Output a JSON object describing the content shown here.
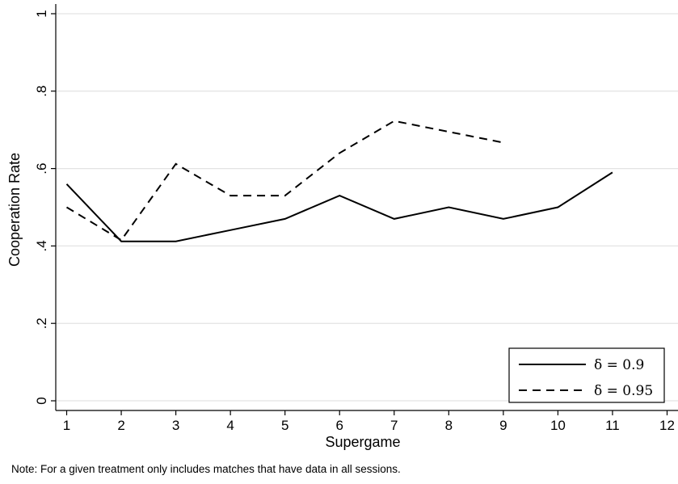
{
  "chart_data": {
    "type": "line",
    "xlabel": "Supergame",
    "ylabel": "Cooperation Rate",
    "x_ticks": [
      1,
      2,
      3,
      4,
      5,
      6,
      7,
      8,
      9,
      10,
      11,
      12
    ],
    "y_ticks": [
      0,
      0.2,
      0.4,
      0.6,
      0.8,
      1
    ],
    "y_tick_labels": [
      "0",
      ".2",
      ".4",
      ".6",
      ".8",
      "1"
    ],
    "xlim": [
      0.8,
      12.2
    ],
    "ylim": [
      -0.025,
      1.025
    ],
    "grid": true,
    "legend_position": "bottom-right",
    "series": [
      {
        "name": "δ = 0.9",
        "style": "solid",
        "color": "#000000",
        "x": [
          1,
          2,
          3,
          4,
          5,
          6,
          7,
          8,
          9,
          10,
          11
        ],
        "values": [
          0.56,
          0.412,
          0.412,
          0.441,
          0.47,
          0.53,
          0.47,
          0.5,
          0.47,
          0.5,
          0.59
        ]
      },
      {
        "name": "δ = 0.95",
        "style": "dashed",
        "color": "#000000",
        "x": [
          1,
          2,
          3,
          4,
          5,
          6,
          7,
          8,
          9
        ],
        "values": [
          0.5,
          0.415,
          0.612,
          0.53,
          0.53,
          0.64,
          0.723,
          0.695,
          0.667
        ]
      }
    ],
    "note": "Note: For a given treatment only includes matches that have data in all sessions."
  }
}
